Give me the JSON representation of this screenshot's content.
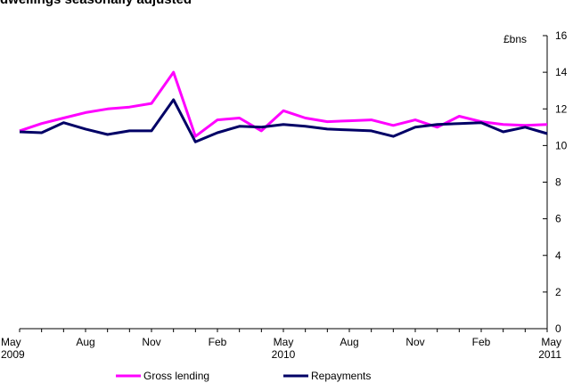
{
  "title": "dwellings seasonally adjusted",
  "chart_data": {
    "type": "line",
    "title": "dwellings seasonally adjusted",
    "ylabel": "£bns",
    "xlabel": "",
    "ylim": [
      0,
      16
    ],
    "y_ticks": [
      0,
      2,
      4,
      6,
      8,
      10,
      12,
      14,
      16
    ],
    "x": [
      "May 2009",
      "Jun 2009",
      "Jul 2009",
      "Aug 2009",
      "Sep 2009",
      "Oct 2009",
      "Nov 2009",
      "Dec 2009",
      "Jan 2010",
      "Feb 2010",
      "Mar 2010",
      "Apr 2010",
      "May 2010",
      "Jun 2010",
      "Jul 2010",
      "Aug 2010",
      "Sep 2010",
      "Oct 2010",
      "Nov 2010",
      "Dec 2010",
      "Jan 2011",
      "Feb 2011",
      "Mar 2011",
      "Apr 2011",
      "May 2011"
    ],
    "x_tick_labels": [
      {
        "index": 0,
        "line1": "May",
        "line2": "2009"
      },
      {
        "index": 3,
        "line1": "Aug",
        "line2": ""
      },
      {
        "index": 6,
        "line1": "Nov",
        "line2": ""
      },
      {
        "index": 9,
        "line1": "Feb",
        "line2": ""
      },
      {
        "index": 12,
        "line1": "May",
        "line2": "2010"
      },
      {
        "index": 15,
        "line1": "Aug",
        "line2": ""
      },
      {
        "index": 18,
        "line1": "Nov",
        "line2": ""
      },
      {
        "index": 21,
        "line1": "Feb",
        "line2": ""
      },
      {
        "index": 24,
        "line1": "May",
        "line2": "2011"
      }
    ],
    "series": [
      {
        "name": "Gross lending",
        "color": "#ff00ff",
        "values": [
          10.8,
          11.2,
          11.5,
          11.8,
          12.0,
          12.1,
          12.3,
          14.0,
          10.5,
          11.4,
          11.5,
          10.8,
          11.9,
          11.5,
          11.3,
          11.35,
          11.4,
          11.1,
          11.4,
          11.0,
          11.6,
          11.3,
          11.15,
          11.1,
          11.15
        ]
      },
      {
        "name": "Repayments",
        "color": "#000066",
        "values": [
          10.75,
          10.7,
          11.25,
          10.9,
          10.6,
          10.8,
          10.8,
          12.5,
          10.2,
          10.7,
          11.05,
          11.0,
          11.15,
          11.05,
          10.9,
          10.85,
          10.8,
          10.5,
          11.0,
          11.15,
          11.2,
          11.25,
          10.75,
          11.0,
          10.65
        ]
      }
    ],
    "grid": false,
    "y_axis_position": "right",
    "legend_position": "bottom"
  }
}
